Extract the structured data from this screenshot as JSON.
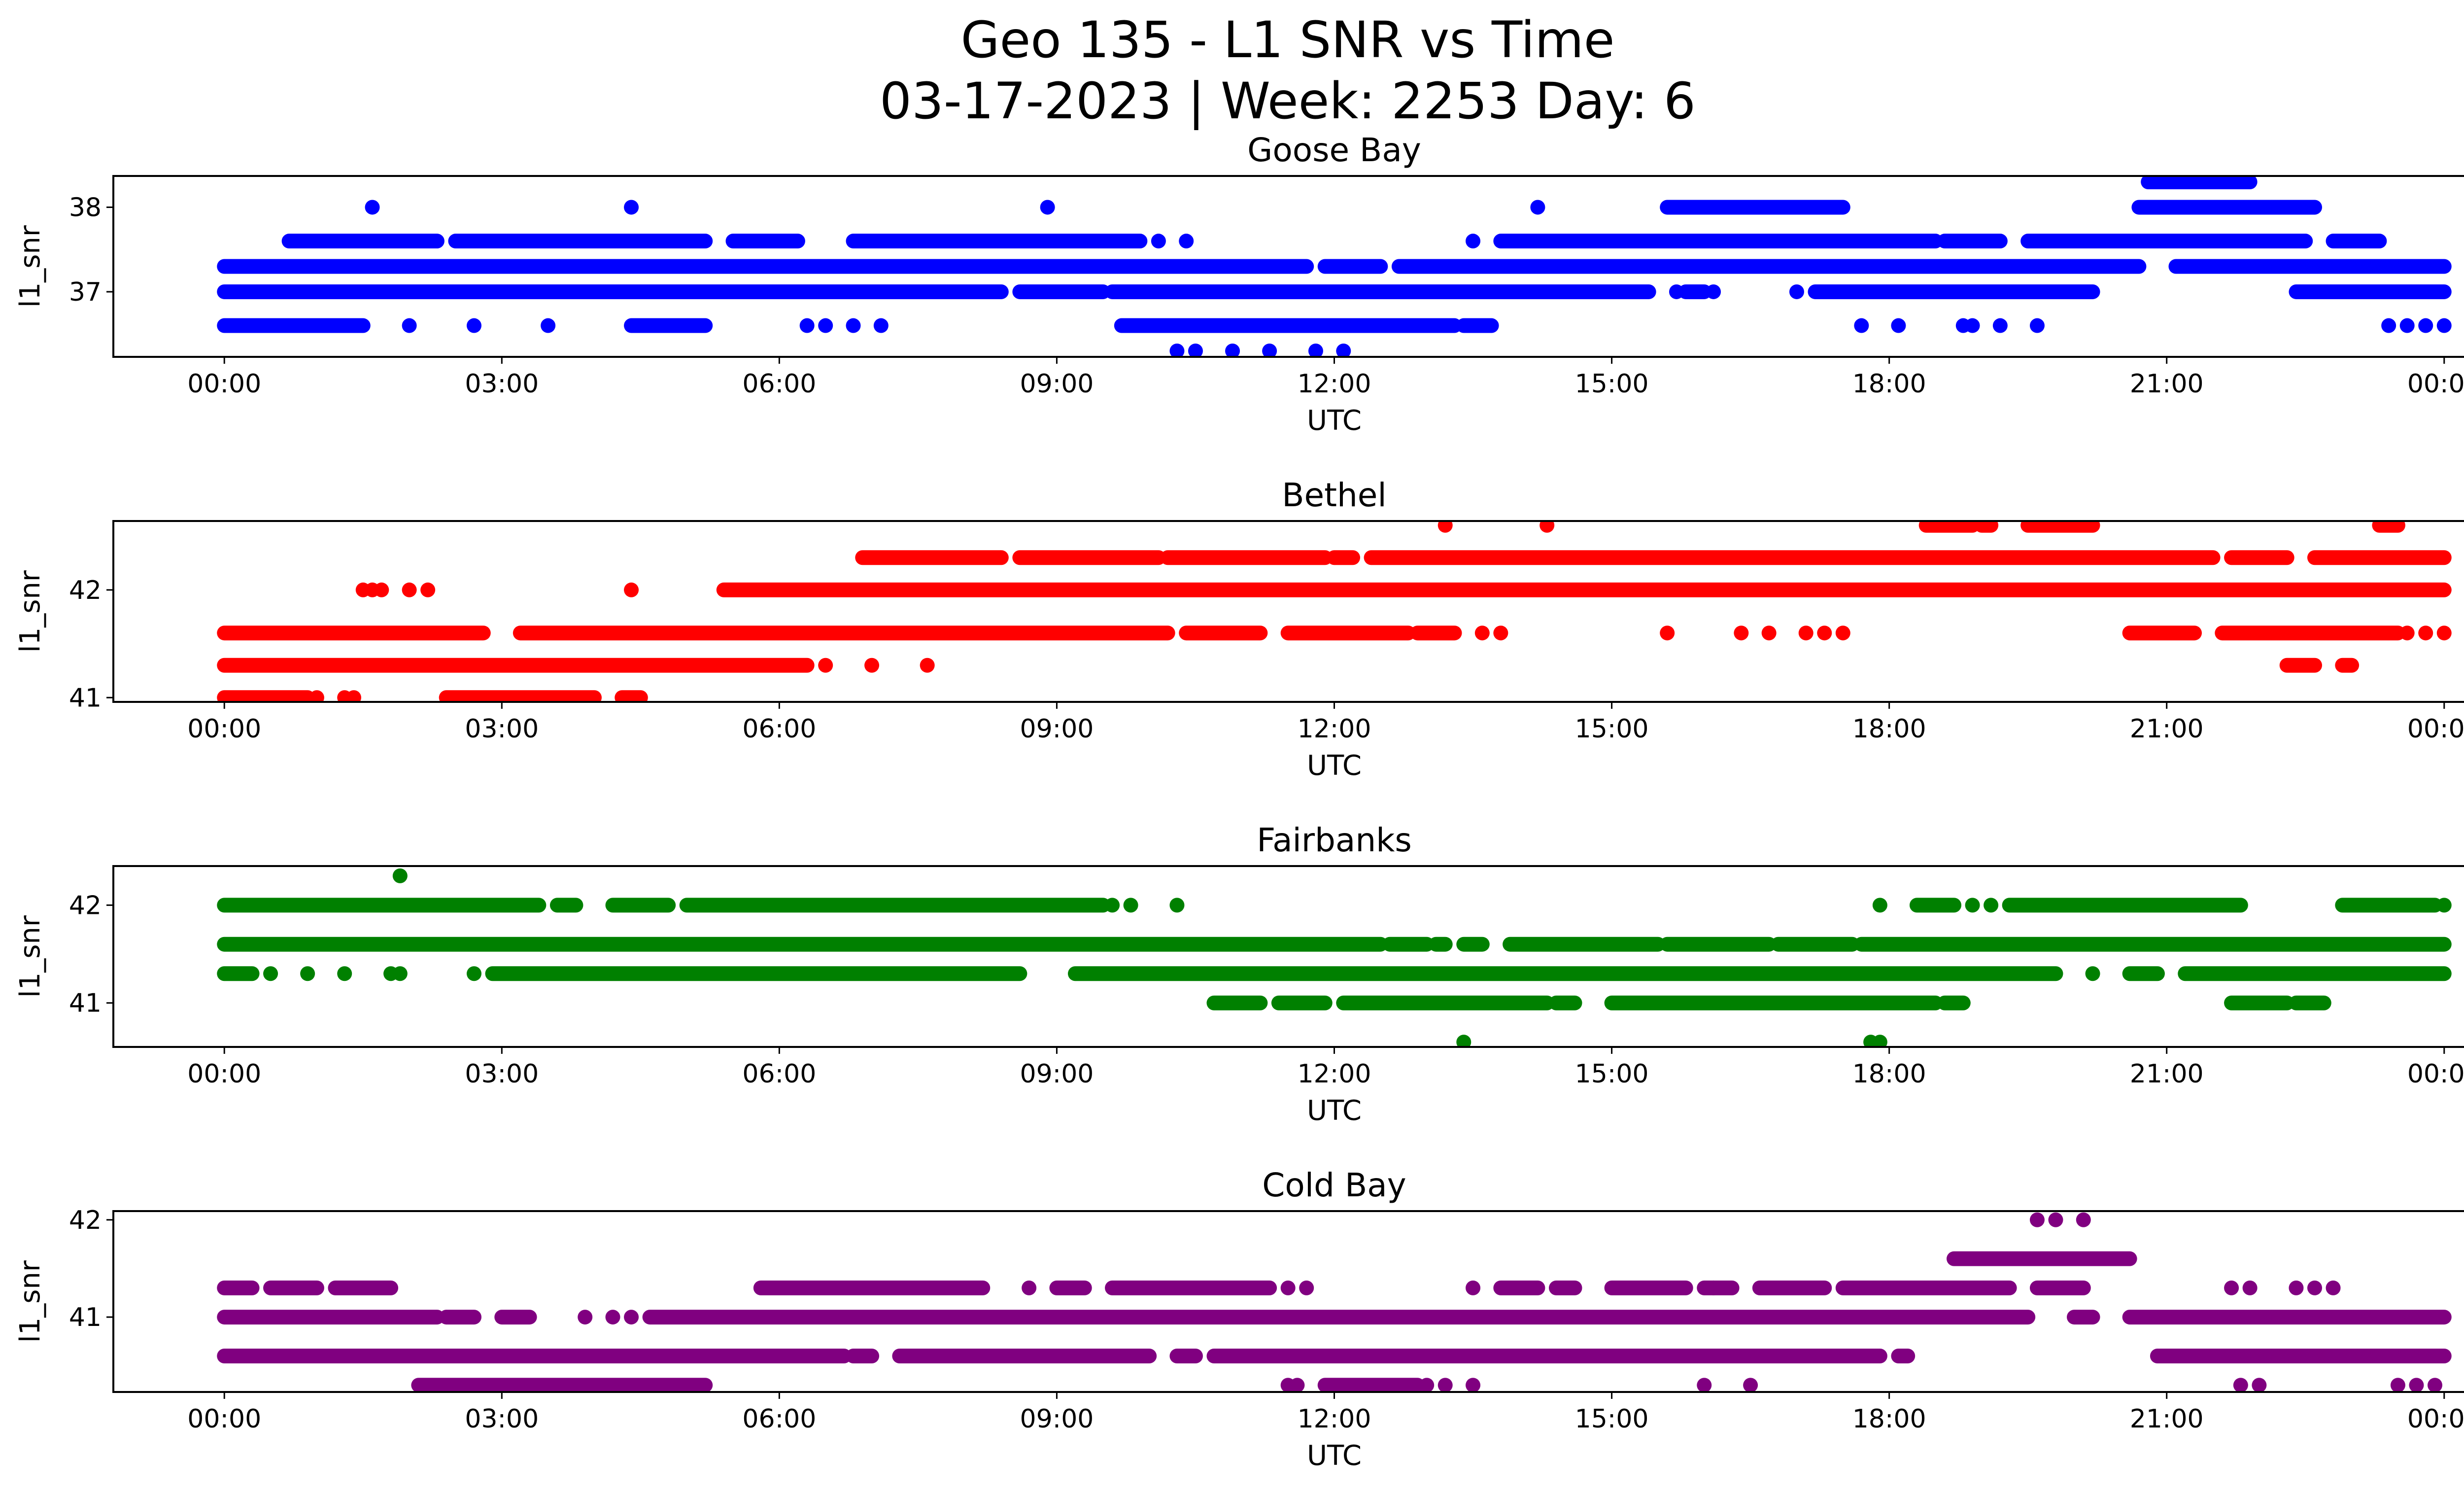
{
  "figure": {
    "title_line1": "Geo 135 - L1 SNR vs Time",
    "title_line2": "03-17-2023 | Week: 2253 Day: 6"
  },
  "chart_data": [
    {
      "type": "scatter",
      "title": "Goose Bay",
      "xlabel": "UTC",
      "ylabel": "l1_snr",
      "color": "#0000ff",
      "xlim": [
        -1.2,
        25.2
      ],
      "ylim": [
        36.23,
        38.37
      ],
      "x_ticks": [
        "00:00",
        "03:00",
        "06:00",
        "09:00",
        "12:00",
        "15:00",
        "18:00",
        "21:00",
        "00:00"
      ],
      "x_tick_values": [
        0,
        3,
        6,
        9,
        12,
        15,
        18,
        21,
        24
      ],
      "y_ticks": [
        37,
        38
      ],
      "bands": [
        {
          "y": 37.3,
          "segments": [
            [
              0,
              11.7
            ],
            [
              11.9,
              12.5
            ],
            [
              12.7,
              20.7
            ],
            [
              21.1,
              24
            ]
          ]
        },
        {
          "y": 37.0,
          "segments": [
            [
              0,
              8.4
            ],
            [
              8.6,
              9.5
            ],
            [
              9.6,
              15.4
            ],
            [
              15.8,
              16.0
            ],
            [
              17.2,
              20.2
            ],
            [
              22.4,
              24
            ]
          ]
        },
        {
          "y": 37.6,
          "segments": [
            [
              0.7,
              2.3
            ],
            [
              2.5,
              5.2
            ],
            [
              5.5,
              6.2
            ],
            [
              6.8,
              9.9
            ],
            [
              13.8,
              18.5
            ],
            [
              18.6,
              19.2
            ],
            [
              19.5,
              22.5
            ],
            [
              22.8,
              23.3
            ]
          ]
        },
        {
          "y": 36.6,
          "segments": [
            [
              0,
              1.5
            ],
            [
              4.4,
              5.2
            ],
            [
              9.7,
              13.3
            ],
            [
              13.4,
              13.7
            ]
          ]
        },
        {
          "y": 38.0,
          "segments": [
            [
              15.6,
              17.5
            ],
            [
              20.7,
              22.6
            ]
          ]
        },
        {
          "y": 38.3,
          "segments": [
            [
              20.8,
              21.9
            ]
          ]
        }
      ],
      "points": [
        {
          "x": 1.6,
          "y": 38.0
        },
        {
          "x": 4.4,
          "y": 38.0
        },
        {
          "x": 8.9,
          "y": 38.0
        },
        {
          "x": 14.2,
          "y": 38.0
        },
        {
          "x": 13.5,
          "y": 37.6
        },
        {
          "x": 10.1,
          "y": 37.6
        },
        {
          "x": 10.4,
          "y": 37.6
        },
        {
          "x": 16.1,
          "y": 37.0
        },
        {
          "x": 17.0,
          "y": 37.0
        },
        {
          "x": 15.7,
          "y": 37.0
        },
        {
          "x": 21.7,
          "y": 37.3
        },
        {
          "x": 2.0,
          "y": 36.6
        },
        {
          "x": 2.7,
          "y": 36.6
        },
        {
          "x": 3.5,
          "y": 36.6
        },
        {
          "x": 6.3,
          "y": 36.6
        },
        {
          "x": 6.5,
          "y": 36.6
        },
        {
          "x": 6.8,
          "y": 36.6
        },
        {
          "x": 7.1,
          "y": 36.6
        },
        {
          "x": 17.7,
          "y": 36.6
        },
        {
          "x": 18.1,
          "y": 36.6
        },
        {
          "x": 18.8,
          "y": 36.6
        },
        {
          "x": 18.9,
          "y": 36.6
        },
        {
          "x": 19.2,
          "y": 36.6
        },
        {
          "x": 19.6,
          "y": 36.6
        },
        {
          "x": 23.4,
          "y": 36.6
        },
        {
          "x": 23.6,
          "y": 36.6
        },
        {
          "x": 23.8,
          "y": 36.6
        },
        {
          "x": 24.0,
          "y": 36.6
        },
        {
          "x": 10.3,
          "y": 36.3
        },
        {
          "x": 10.5,
          "y": 36.3
        },
        {
          "x": 10.9,
          "y": 36.3
        },
        {
          "x": 11.3,
          "y": 36.3
        },
        {
          "x": 11.8,
          "y": 36.3
        },
        {
          "x": 12.1,
          "y": 36.3
        }
      ]
    },
    {
      "type": "scatter",
      "title": "Bethel",
      "xlabel": "UTC",
      "ylabel": "l1_snr",
      "color": "#ff0000",
      "xlim": [
        -1.2,
        25.2
      ],
      "ylim": [
        40.96,
        42.64
      ],
      "x_ticks": [
        "00:00",
        "03:00",
        "06:00",
        "09:00",
        "12:00",
        "15:00",
        "18:00",
        "21:00",
        "00:00"
      ],
      "x_tick_values": [
        0,
        3,
        6,
        9,
        12,
        15,
        18,
        21,
        24
      ],
      "y_ticks": [
        41,
        42
      ],
      "bands": [
        {
          "y": 42.0,
          "segments": [
            [
              5.4,
              24
            ]
          ]
        },
        {
          "y": 42.3,
          "segments": [
            [
              6.9,
              8.4
            ],
            [
              8.6,
              10.1
            ],
            [
              10.2,
              11.9
            ],
            [
              12.0,
              12.2
            ],
            [
              12.4,
              21.5
            ],
            [
              21.7,
              22.3
            ],
            [
              22.6,
              24
            ]
          ]
        },
        {
          "y": 41.6,
          "segments": [
            [
              0,
              2.8
            ],
            [
              3.2,
              10.2
            ],
            [
              10.4,
              11.2
            ],
            [
              11.5,
              12.8
            ],
            [
              12.9,
              13.3
            ],
            [
              20.6,
              21.3
            ],
            [
              21.6,
              23.5
            ]
          ]
        },
        {
          "y": 41.3,
          "segments": [
            [
              0,
              6.3
            ],
            [
              22.3,
              22.6
            ],
            [
              22.9,
              23.0
            ]
          ]
        },
        {
          "y": 41.0,
          "segments": [
            [
              0,
              0.9
            ],
            [
              2.4,
              4.0
            ],
            [
              4.3,
              4.5
            ]
          ]
        },
        {
          "y": 42.6,
          "segments": [
            [
              18.4,
              18.9
            ],
            [
              19.0,
              19.1
            ],
            [
              19.5,
              20.2
            ],
            [
              23.3,
              23.5
            ]
          ]
        }
      ],
      "points": [
        {
          "x": 13.2,
          "y": 42.6
        },
        {
          "x": 14.3,
          "y": 42.6
        },
        {
          "x": 1.5,
          "y": 42.0
        },
        {
          "x": 1.6,
          "y": 42.0
        },
        {
          "x": 1.7,
          "y": 42.0
        },
        {
          "x": 2.0,
          "y": 42.0
        },
        {
          "x": 2.2,
          "y": 42.0
        },
        {
          "x": 4.4,
          "y": 42.0
        },
        {
          "x": 13.6,
          "y": 41.6
        },
        {
          "x": 13.8,
          "y": 41.6
        },
        {
          "x": 15.6,
          "y": 41.6
        },
        {
          "x": 16.4,
          "y": 41.6
        },
        {
          "x": 16.7,
          "y": 41.6
        },
        {
          "x": 17.1,
          "y": 41.6
        },
        {
          "x": 17.3,
          "y": 41.6
        },
        {
          "x": 17.5,
          "y": 41.6
        },
        {
          "x": 23.6,
          "y": 41.6
        },
        {
          "x": 23.8,
          "y": 41.6
        },
        {
          "x": 24.0,
          "y": 41.6
        },
        {
          "x": 6.5,
          "y": 41.3
        },
        {
          "x": 7.0,
          "y": 41.3
        },
        {
          "x": 7.6,
          "y": 41.3
        },
        {
          "x": 1.0,
          "y": 41.0
        },
        {
          "x": 1.3,
          "y": 41.0
        },
        {
          "x": 1.4,
          "y": 41.0
        }
      ]
    },
    {
      "type": "scatter",
      "title": "Fairbanks",
      "xlabel": "UTC",
      "ylabel": "l1_snr",
      "color": "#008000",
      "xlim": [
        -1.2,
        25.2
      ],
      "ylim": [
        40.55,
        42.4
      ],
      "x_ticks": [
        "00:00",
        "03:00",
        "06:00",
        "09:00",
        "12:00",
        "15:00",
        "18:00",
        "21:00",
        "00:00"
      ],
      "x_tick_values": [
        0,
        3,
        6,
        9,
        12,
        15,
        18,
        21,
        24
      ],
      "y_ticks": [
        41,
        42
      ],
      "bands": [
        {
          "y": 41.6,
          "segments": [
            [
              0,
              12.5
            ],
            [
              12.6,
              13.0
            ],
            [
              13.1,
              13.2
            ],
            [
              13.4,
              13.6
            ],
            [
              13.9,
              15.5
            ],
            [
              15.6,
              16.7
            ],
            [
              16.8,
              17.6
            ],
            [
              17.7,
              24
            ]
          ]
        },
        {
          "y": 41.3,
          "segments": [
            [
              0,
              0.3
            ],
            [
              2.9,
              8.6
            ],
            [
              9.2,
              19.8
            ],
            [
              20.6,
              20.9
            ],
            [
              21.2,
              24
            ]
          ]
        },
        {
          "y": 42.0,
          "segments": [
            [
              0,
              3.4
            ],
            [
              3.6,
              3.8
            ],
            [
              4.2,
              4.8
            ],
            [
              5.0,
              9.5
            ],
            [
              18.3,
              18.7
            ],
            [
              19.3,
              21.8
            ],
            [
              22.9,
              23.9
            ]
          ]
        },
        {
          "y": 41.0,
          "segments": [
            [
              10.7,
              11.2
            ],
            [
              11.4,
              11.9
            ],
            [
              12.1,
              14.3
            ],
            [
              14.4,
              14.6
            ],
            [
              15.0,
              18.5
            ],
            [
              18.6,
              18.8
            ],
            [
              21.7,
              22.3
            ],
            [
              22.4,
              22.7
            ]
          ]
        }
      ],
      "points": [
        {
          "x": 1.9,
          "y": 42.3
        },
        {
          "x": 9.6,
          "y": 42.0
        },
        {
          "x": 9.8,
          "y": 42.0
        },
        {
          "x": 10.3,
          "y": 42.0
        },
        {
          "x": 17.9,
          "y": 42.0
        },
        {
          "x": 18.9,
          "y": 42.0
        },
        {
          "x": 19.1,
          "y": 42.0
        },
        {
          "x": 24.0,
          "y": 42.0
        },
        {
          "x": 0.5,
          "y": 41.3
        },
        {
          "x": 0.9,
          "y": 41.3
        },
        {
          "x": 1.3,
          "y": 41.3
        },
        {
          "x": 1.8,
          "y": 41.3
        },
        {
          "x": 1.9,
          "y": 41.3
        },
        {
          "x": 2.7,
          "y": 41.3
        },
        {
          "x": 20.2,
          "y": 41.3
        },
        {
          "x": 13.4,
          "y": 40.6
        },
        {
          "x": 17.8,
          "y": 40.6
        },
        {
          "x": 17.9,
          "y": 40.6
        }
      ]
    },
    {
      "type": "scatter",
      "title": "Cold Bay",
      "xlabel": "UTC",
      "ylabel": "l1_snr",
      "color": "#800080",
      "xlim": [
        -1.2,
        25.2
      ],
      "ylim": [
        40.23,
        42.09
      ],
      "x_ticks": [
        "00:00",
        "03:00",
        "06:00",
        "09:00",
        "12:00",
        "15:00",
        "18:00",
        "21:00",
        "00:00"
      ],
      "x_tick_values": [
        0,
        3,
        6,
        9,
        12,
        15,
        18,
        21,
        24
      ],
      "y_ticks": [
        41,
        42
      ],
      "bands": [
        {
          "y": 41.0,
          "segments": [
            [
              0,
              2.3
            ],
            [
              2.4,
              2.7
            ],
            [
              3.0,
              3.3
            ],
            [
              4.6,
              19.5
            ],
            [
              20.0,
              20.2
            ],
            [
              20.6,
              24
            ]
          ]
        },
        {
          "y": 40.6,
          "segments": [
            [
              0,
              6.7
            ],
            [
              6.8,
              7.0
            ],
            [
              7.3,
              10.0
            ],
            [
              10.3,
              10.5
            ],
            [
              10.7,
              17.9
            ],
            [
              18.1,
              18.2
            ],
            [
              20.9,
              24
            ]
          ]
        },
        {
          "y": 41.3,
          "segments": [
            [
              0,
              0.3
            ],
            [
              0.5,
              1.0
            ],
            [
              1.2,
              1.8
            ],
            [
              5.8,
              8.2
            ],
            [
              9.0,
              9.3
            ],
            [
              9.6,
              11.3
            ],
            [
              13.8,
              14.2
            ],
            [
              14.4,
              14.6
            ],
            [
              15.0,
              15.8
            ],
            [
              16.0,
              16.3
            ],
            [
              16.6,
              17.3
            ],
            [
              17.5,
              19.3
            ],
            [
              19.6,
              20.1
            ]
          ]
        },
        {
          "y": 40.3,
          "segments": [
            [
              2.1,
              5.2
            ],
            [
              11.9,
              12.9
            ]
          ]
        },
        {
          "y": 41.6,
          "segments": [
            [
              18.7,
              20.6
            ]
          ]
        }
      ],
      "points": [
        {
          "x": 19.6,
          "y": 42.0
        },
        {
          "x": 19.8,
          "y": 42.0
        },
        {
          "x": 20.1,
          "y": 42.0
        },
        {
          "x": 8.7,
          "y": 41.3
        },
        {
          "x": 11.5,
          "y": 41.3
        },
        {
          "x": 11.7,
          "y": 41.3
        },
        {
          "x": 13.5,
          "y": 41.3
        },
        {
          "x": 16.1,
          "y": 41.3
        },
        {
          "x": 21.7,
          "y": 41.3
        },
        {
          "x": 21.9,
          "y": 41.3
        },
        {
          "x": 22.4,
          "y": 41.3
        },
        {
          "x": 22.6,
          "y": 41.3
        },
        {
          "x": 22.8,
          "y": 41.3
        },
        {
          "x": 3.9,
          "y": 41.0
        },
        {
          "x": 4.2,
          "y": 41.0
        },
        {
          "x": 4.4,
          "y": 41.0
        },
        {
          "x": 11.5,
          "y": 40.3
        },
        {
          "x": 11.6,
          "y": 40.3
        },
        {
          "x": 13.0,
          "y": 40.3
        },
        {
          "x": 13.2,
          "y": 40.3
        },
        {
          "x": 13.5,
          "y": 40.3
        },
        {
          "x": 16.0,
          "y": 40.3
        },
        {
          "x": 16.5,
          "y": 40.3
        },
        {
          "x": 21.8,
          "y": 40.3
        },
        {
          "x": 22.0,
          "y": 40.3
        },
        {
          "x": 23.5,
          "y": 40.3
        },
        {
          "x": 23.7,
          "y": 40.3
        },
        {
          "x": 23.9,
          "y": 40.3
        }
      ]
    }
  ]
}
